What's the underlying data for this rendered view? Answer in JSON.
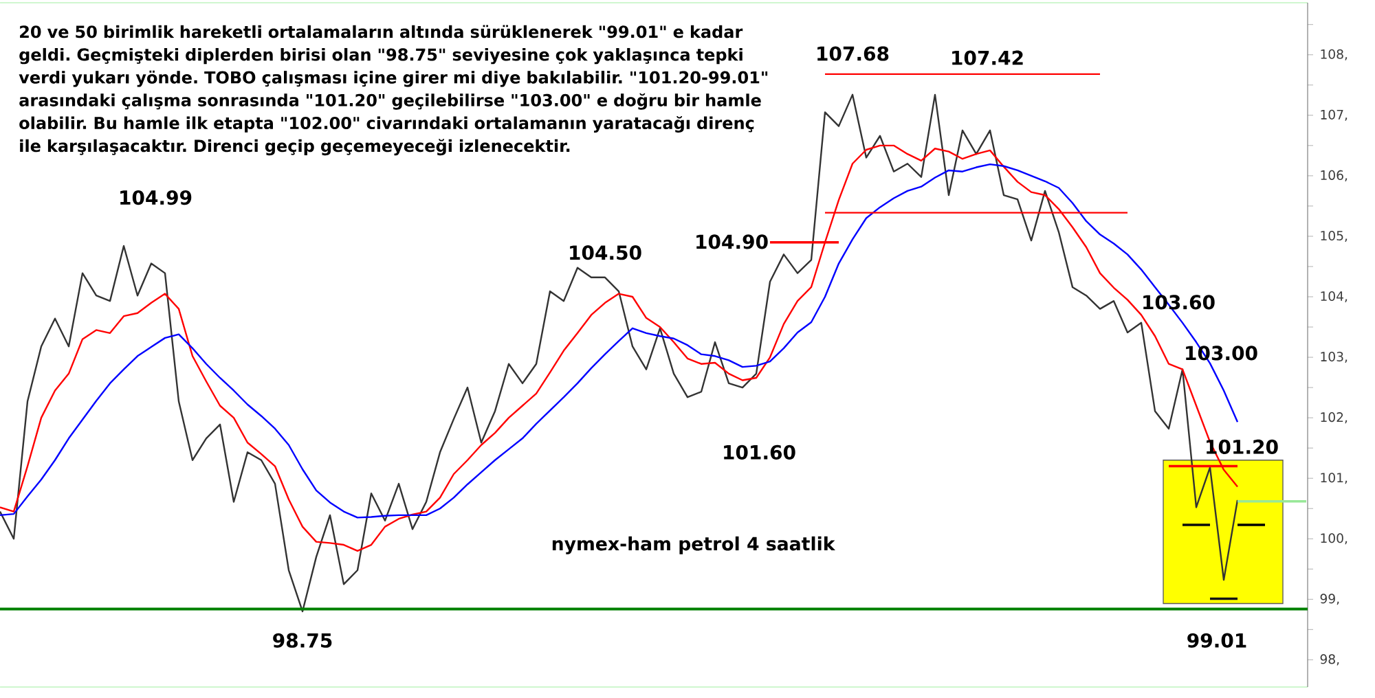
{
  "chart_data": {
    "type": "line",
    "title": "20 ve 50 birimlik hareketli ortalamaların altında sürüklenerek \"99.01\" e kadar geldi. Geçmişteki diplerden birisi olan \"98.75\" seviyesine çok yaklaşınca tepki verdi yukarı yönde. TOBO çalışması içine girer mi diye bakılabilir. \"101.20-99.01\" arasındaki çalışma sonrasında \"101.20\" geçilebilirse \"103.00\" e doğru bir hamle olabilir. Bu hamle ilk etapta \"102.00\" civarındaki ortalamanın yaratacağı direnç ile karşılaşacaktır. Direnci geçip geçemeyeceği izlenecektir.",
    "subtitle": "nymex-ham petrol 4 saatlik",
    "categories": [
      null,
      null,
      null,
      null,
      null,
      null,
      null,
      null,
      null,
      null,
      null,
      null,
      null,
      null,
      null,
      null,
      null,
      null,
      null,
      null,
      null,
      null,
      null,
      null,
      null,
      null,
      null,
      null,
      null,
      null,
      null,
      null,
      null,
      null,
      null,
      null,
      null,
      null,
      null,
      null,
      null,
      null,
      null,
      null,
      null,
      null,
      null,
      null,
      null,
      null,
      null,
      null,
      null,
      null,
      null,
      null,
      null,
      null,
      null,
      null,
      null,
      null,
      null,
      null,
      null,
      null,
      null,
      null,
      null,
      null,
      null,
      null,
      null,
      null,
      null,
      null,
      null,
      null,
      null,
      null,
      null,
      null,
      null,
      null,
      null,
      null,
      null,
      null,
      null,
      null,
      null,
      null,
      null,
      null,
      null,
      null
    ],
    "ylim": [
      97.55,
      108.86
    ],
    "yticks": [
      {
        "value": 98,
        "label": "98,"
      },
      {
        "value": 98.5,
        "label": null
      },
      {
        "value": 99,
        "label": "99,"
      },
      {
        "value": 99.5,
        "label": null
      },
      {
        "value": 100,
        "label": "100,"
      },
      {
        "value": 100.5,
        "label": null
      },
      {
        "value": 101,
        "label": "101,"
      },
      {
        "value": 101.5,
        "label": null
      },
      {
        "value": 102,
        "label": "102,"
      },
      {
        "value": 102.5,
        "label": null
      },
      {
        "value": 103,
        "label": "103,"
      },
      {
        "value": 103.5,
        "label": null
      },
      {
        "value": 104,
        "label": "104,"
      },
      {
        "value": 104.5,
        "label": null
      },
      {
        "value": 105,
        "label": "105,"
      },
      {
        "value": 105.5,
        "label": null
      },
      {
        "value": 106,
        "label": "106,"
      },
      {
        "value": 106.5,
        "label": null
      },
      {
        "value": 107,
        "label": "107,"
      },
      {
        "value": 107.5,
        "label": null
      },
      {
        "value": 108,
        "label": "108,"
      },
      {
        "value": 108.5,
        "label": null
      }
    ],
    "tick_labels": "y",
    "series": [
      {
        "color": "#333333",
        "values": [
          100.45,
          100.0,
          102.27,
          103.18,
          103.64,
          103.18,
          104.39,
          104.02,
          103.93,
          104.84,
          104.02,
          104.55,
          104.39,
          102.27,
          101.3,
          101.66,
          101.89,
          100.61,
          101.43,
          101.3,
          100.91,
          99.48,
          98.8,
          99.7,
          100.39,
          99.25,
          99.48,
          100.75,
          100.3,
          100.91,
          100.16,
          100.61,
          101.43,
          101.98,
          102.5,
          101.59,
          102.11,
          102.89,
          102.57,
          102.89,
          104.09,
          103.93,
          104.48,
          104.32,
          104.32,
          104.09,
          103.18,
          102.8,
          103.48,
          102.73,
          102.34,
          102.43,
          103.25,
          102.57,
          102.5,
          102.73,
          104.25,
          104.7,
          104.39,
          104.61,
          107.05,
          106.82,
          107.34,
          106.3,
          106.66,
          106.07,
          106.2,
          105.98,
          107.34,
          105.68,
          106.75,
          106.36,
          106.75,
          105.68,
          105.61,
          104.93,
          105.75,
          105.07,
          104.16,
          104.02,
          103.8,
          103.93,
          103.41,
          103.57,
          102.11,
          101.82,
          102.8,
          100.52,
          101.18,
          99.32,
          100.64,
          null,
          null,
          null,
          null,
          null
        ]
      },
      {
        "color": "#ff0000",
        "values": [
          100.52,
          100.45,
          101.2,
          102.0,
          102.45,
          102.73,
          103.3,
          103.45,
          103.4,
          103.68,
          103.73,
          103.9,
          104.05,
          103.8,
          103.02,
          102.6,
          102.2,
          102.0,
          101.59,
          101.4,
          101.2,
          100.65,
          100.2,
          99.95,
          99.93,
          99.9,
          99.8,
          99.9,
          100.2,
          100.33,
          100.4,
          100.45,
          100.68,
          101.07,
          101.3,
          101.55,
          101.75,
          102.0,
          102.2,
          102.4,
          102.75,
          103.11,
          103.4,
          103.7,
          103.9,
          104.05,
          104.0,
          103.65,
          103.5,
          103.25,
          102.98,
          102.89,
          102.91,
          102.73,
          102.62,
          102.66,
          103.0,
          103.55,
          103.93,
          104.16,
          104.9,
          105.6,
          106.2,
          106.43,
          106.5,
          106.5,
          106.36,
          106.25,
          106.45,
          106.4,
          106.28,
          106.36,
          106.42,
          106.15,
          105.9,
          105.73,
          105.68,
          105.45,
          105.15,
          104.82,
          104.39,
          104.15,
          103.95,
          103.7,
          103.35,
          102.89,
          102.8,
          102.2,
          101.6,
          101.14,
          100.86,
          null,
          null,
          null,
          null,
          null
        ]
      },
      {
        "color": "#0000ff",
        "values": [
          100.39,
          100.41,
          100.7,
          100.98,
          101.3,
          101.66,
          101.97,
          102.28,
          102.57,
          102.8,
          103.02,
          103.17,
          103.32,
          103.38,
          103.15,
          102.89,
          102.66,
          102.45,
          102.22,
          102.03,
          101.82,
          101.55,
          101.15,
          100.8,
          100.6,
          100.45,
          100.35,
          100.36,
          100.38,
          100.39,
          100.39,
          100.39,
          100.5,
          100.68,
          100.9,
          101.1,
          101.3,
          101.48,
          101.66,
          101.9,
          102.12,
          102.34,
          102.57,
          102.82,
          103.05,
          103.27,
          103.48,
          103.4,
          103.35,
          103.31,
          103.2,
          103.05,
          103.02,
          102.95,
          102.84,
          102.86,
          102.93,
          103.15,
          103.41,
          103.58,
          104.0,
          104.55,
          104.95,
          105.3,
          105.48,
          105.63,
          105.75,
          105.82,
          105.97,
          106.09,
          106.07,
          106.14,
          106.19,
          106.16,
          106.09,
          106.0,
          105.91,
          105.8,
          105.55,
          105.25,
          105.03,
          104.88,
          104.7,
          104.45,
          104.16,
          103.87,
          103.57,
          103.25,
          102.9,
          102.45,
          101.93,
          null,
          null,
          null,
          null,
          null
        ]
      },
      {
        "type": "line",
        "color": "#ff0000",
        "values": [
          null,
          null,
          null,
          null,
          null,
          null,
          null,
          null,
          null,
          null,
          null,
          null,
          null,
          null,
          null,
          null,
          null,
          null,
          null,
          null,
          null,
          null,
          null,
          null,
          null,
          null,
          null,
          null,
          null,
          null,
          null,
          null,
          null,
          null,
          null,
          null,
          null,
          null,
          null,
          null,
          null,
          null,
          null,
          null,
          null,
          null,
          null,
          null,
          null,
          null,
          null,
          null,
          null,
          null,
          null,
          null,
          null,
          null,
          null,
          null,
          107.68,
          107.68,
          107.68,
          107.68,
          107.68,
          107.68,
          107.68,
          107.68,
          107.68,
          107.68,
          107.68,
          107.68,
          107.68,
          107.68,
          107.68,
          107.68,
          107.68,
          107.68,
          107.68,
          107.68,
          107.68,
          null,
          null,
          null,
          null,
          null,
          null,
          null,
          null,
          null,
          null,
          null,
          null,
          null,
          null,
          null
        ]
      },
      {
        "type": "line",
        "color": "#ff0000",
        "values": [
          null,
          null,
          null,
          null,
          null,
          null,
          null,
          null,
          null,
          null,
          null,
          null,
          null,
          null,
          null,
          null,
          null,
          null,
          null,
          null,
          null,
          null,
          null,
          null,
          null,
          null,
          null,
          null,
          null,
          null,
          null,
          null,
          null,
          null,
          null,
          null,
          null,
          null,
          null,
          null,
          null,
          null,
          null,
          null,
          null,
          null,
          null,
          null,
          null,
          null,
          null,
          null,
          null,
          null,
          null,
          null,
          null,
          null,
          null,
          null,
          105.39,
          105.39,
          105.39,
          105.39,
          105.39,
          105.39,
          105.39,
          105.39,
          105.39,
          105.39,
          105.39,
          105.39,
          105.39,
          105.39,
          105.39,
          105.39,
          105.39,
          105.39,
          105.39,
          105.39,
          105.39,
          105.39,
          105.39,
          null,
          null,
          null,
          null,
          null,
          null,
          null,
          null,
          null,
          null,
          null,
          null,
          null
        ]
      },
      {
        "type": "line",
        "color": "#ff0000",
        "values": [
          null,
          null,
          null,
          null,
          null,
          null,
          null,
          null,
          null,
          null,
          null,
          null,
          null,
          null,
          null,
          null,
          null,
          null,
          null,
          null,
          null,
          null,
          null,
          null,
          null,
          null,
          null,
          null,
          null,
          null,
          null,
          null,
          null,
          null,
          null,
          null,
          null,
          null,
          null,
          null,
          null,
          null,
          null,
          null,
          null,
          null,
          null,
          null,
          null,
          null,
          null,
          null,
          null,
          null,
          null,
          null,
          104.9,
          104.9,
          104.9,
          104.9,
          104.9,
          104.9,
          null,
          null,
          null,
          null,
          null,
          null,
          null,
          null,
          null,
          null,
          null,
          null,
          null,
          null,
          null,
          null,
          null,
          null,
          null,
          null,
          null,
          null,
          null,
          null,
          null,
          null,
          null,
          null,
          null,
          null,
          null,
          null,
          null,
          null
        ]
      },
      {
        "type": "line",
        "color": "#ff0000",
        "values": [
          null,
          null,
          null,
          null,
          null,
          null,
          null,
          null,
          null,
          null,
          null,
          null,
          null,
          null,
          null,
          null,
          null,
          null,
          null,
          null,
          null,
          null,
          null,
          null,
          null,
          null,
          null,
          null,
          null,
          null,
          null,
          null,
          null,
          null,
          null,
          null,
          null,
          null,
          null,
          null,
          null,
          null,
          null,
          null,
          null,
          null,
          null,
          null,
          null,
          null,
          null,
          null,
          null,
          null,
          null,
          null,
          null,
          null,
          null,
          null,
          null,
          null,
          null,
          null,
          null,
          null,
          null,
          null,
          null,
          null,
          null,
          null,
          null,
          null,
          null,
          null,
          null,
          null,
          null,
          null,
          null,
          null,
          null,
          null,
          null,
          101.2,
          101.2,
          101.2,
          101.2,
          101.2,
          101.2,
          null,
          null,
          null,
          null,
          null
        ]
      },
      {
        "type": "line",
        "color": "#0a0a0a",
        "values": [
          null,
          null,
          null,
          null,
          null,
          null,
          null,
          null,
          null,
          null,
          null,
          null,
          null,
          null,
          null,
          null,
          null,
          null,
          null,
          null,
          null,
          null,
          null,
          null,
          null,
          null,
          null,
          null,
          null,
          null,
          null,
          null,
          null,
          null,
          null,
          null,
          null,
          null,
          null,
          null,
          null,
          null,
          null,
          null,
          null,
          null,
          null,
          null,
          null,
          null,
          null,
          null,
          null,
          null,
          null,
          null,
          null,
          null,
          null,
          null,
          null,
          null,
          null,
          null,
          null,
          null,
          null,
          null,
          null,
          null,
          null,
          null,
          null,
          null,
          null,
          null,
          null,
          null,
          null,
          null,
          null,
          null,
          null,
          null,
          null,
          null,
          100.23,
          100.23,
          100.23,
          null,
          null,
          null,
          null,
          null,
          null,
          null
        ]
      },
      {
        "type": "line",
        "color": "#000000",
        "values": [
          null,
          null,
          null,
          null,
          null,
          null,
          null,
          null,
          null,
          null,
          null,
          null,
          null,
          null,
          null,
          null,
          null,
          null,
          null,
          null,
          null,
          null,
          null,
          null,
          null,
          null,
          null,
          null,
          null,
          null,
          null,
          null,
          null,
          null,
          null,
          null,
          null,
          null,
          null,
          null,
          null,
          null,
          null,
          null,
          null,
          null,
          null,
          null,
          null,
          null,
          null,
          null,
          null,
          null,
          null,
          null,
          null,
          null,
          null,
          null,
          null,
          null,
          null,
          null,
          null,
          null,
          null,
          null,
          null,
          null,
          null,
          null,
          null,
          null,
          null,
          null,
          null,
          null,
          null,
          null,
          null,
          null,
          null,
          null,
          null,
          null,
          null,
          null,
          null,
          null,
          100.23,
          100.23,
          100.23,
          null,
          null,
          null
        ]
      },
      {
        "type": "line",
        "color": "#141414",
        "values": [
          null,
          null,
          null,
          null,
          null,
          null,
          null,
          null,
          null,
          null,
          null,
          null,
          null,
          null,
          null,
          null,
          null,
          null,
          null,
          null,
          null,
          null,
          null,
          null,
          null,
          null,
          null,
          null,
          null,
          null,
          null,
          null,
          null,
          null,
          null,
          null,
          null,
          null,
          null,
          null,
          null,
          null,
          null,
          null,
          null,
          null,
          null,
          null,
          null,
          null,
          null,
          null,
          null,
          null,
          null,
          null,
          null,
          null,
          null,
          null,
          null,
          null,
          null,
          null,
          null,
          null,
          null,
          null,
          null,
          null,
          null,
          null,
          null,
          null,
          null,
          null,
          null,
          null,
          null,
          null,
          null,
          null,
          null,
          null,
          null,
          null,
          null,
          null,
          99.01,
          99.01,
          99.01,
          null,
          null,
          null,
          null,
          null
        ]
      },
      {
        "type": "line",
        "color": "#98e898",
        "values": [
          null,
          null,
          null,
          null,
          null,
          null,
          null,
          null,
          null,
          null,
          null,
          null,
          null,
          null,
          null,
          null,
          null,
          null,
          null,
          null,
          null,
          null,
          null,
          null,
          null,
          null,
          null,
          null,
          null,
          null,
          null,
          null,
          null,
          null,
          null,
          null,
          null,
          null,
          null,
          null,
          null,
          null,
          null,
          null,
          null,
          null,
          null,
          null,
          null,
          null,
          null,
          null,
          null,
          null,
          null,
          null,
          null,
          null,
          null,
          null,
          null,
          null,
          null,
          null,
          null,
          null,
          null,
          null,
          null,
          null,
          null,
          null,
          null,
          null,
          null,
          null,
          null,
          null,
          null,
          null,
          null,
          null,
          null,
          null,
          null,
          null,
          null,
          null,
          null,
          null,
          100.62,
          100.62,
          100.62,
          100.62,
          100.62,
          100.62
        ]
      }
    ],
    "ref_lines": [
      {
        "axis": "y",
        "value": 98.84,
        "color": "#008000"
      }
    ],
    "annotations": [
      "104.99",
      "98.75",
      "104.50",
      "101.60",
      "104.90",
      "107.68",
      "107.42",
      "103.60",
      "103.00",
      "101.20",
      "99.01"
    ]
  }
}
